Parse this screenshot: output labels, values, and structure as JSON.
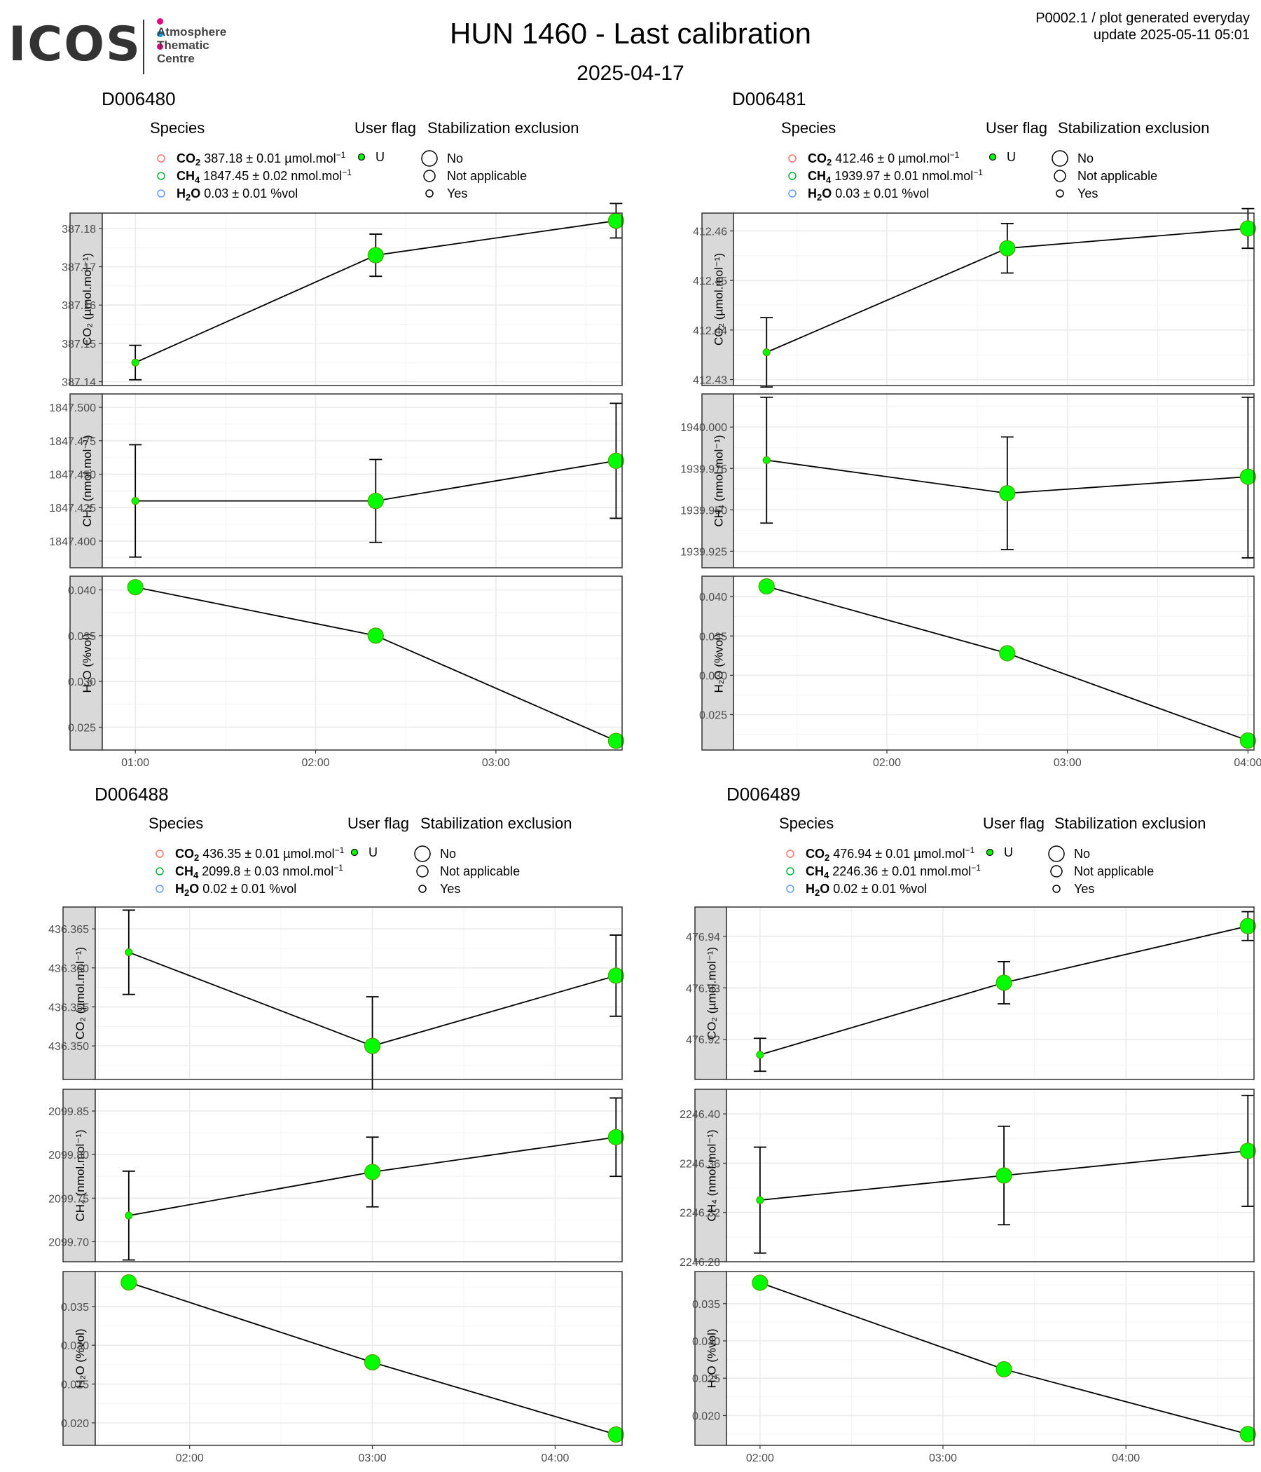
{
  "header": {
    "logo_text": "ICOS",
    "logo_subtitle": "Atmosphere\nThematic\nCentre",
    "logo_dot_colors": [
      "#e6007e",
      "#00a0e3",
      "#e6007e"
    ],
    "title": "HUN 1460 - Last calibration",
    "subtitle": "2025-04-17",
    "top_right_line1": "P0002.1 / plot generated everyday",
    "top_right_line2": "update  2025-05-11 05:01"
  },
  "legend_titles": {
    "species": "Species",
    "user_flag": "User flag",
    "stabilization": "Stabilization exclusion",
    "user_flag_value": "U",
    "stab_values": [
      "No",
      "Not applicable",
      "Yes"
    ]
  },
  "colors": {
    "point_fill": "#00ff00",
    "point_edge": "#52a300",
    "line": "#000000",
    "co2_legend": "#f8766d",
    "ch4_legend": "#00ba38",
    "h2o_legend": "#619cff"
  },
  "chart_data": [
    {
      "type": "line",
      "cylinder": "D006480",
      "legend": [
        {
          "species": "CO",
          "sub": "2",
          "text": " 387.18 ± 0.01 µmol.mol",
          "sup": "−1"
        },
        {
          "species": "CH",
          "sub": "4",
          "text": " 1847.45 ± 0.02 nmol.mol",
          "sup": "−1"
        },
        {
          "species": "H",
          "sub": "2",
          "species2": "O",
          "text": " 0.03 ± 0.01 %vol",
          "sup": ""
        }
      ],
      "x_ticks": [
        {
          "v": 60,
          "label": "01:00"
        },
        {
          "v": 120,
          "label": "02:00"
        },
        {
          "v": 180,
          "label": "03:00"
        }
      ],
      "xlim": [
        49,
        222
      ],
      "panels": [
        {
          "ylabel": "CO₂ (µmol.mol⁻¹)",
          "ylim": [
            387.139,
            387.184
          ],
          "ticks": [
            "387.14",
            "387.15",
            "387.16",
            "387.17",
            "387.18"
          ],
          "tick_vals": [
            387.14,
            387.15,
            387.16,
            387.17,
            387.18
          ],
          "points": [
            {
              "x": 60,
              "y": 387.145,
              "lo": 387.1405,
              "hi": 387.1495,
              "s": "small"
            },
            {
              "x": 140,
              "y": 387.173,
              "lo": 387.1675,
              "hi": 387.1785,
              "s": "large"
            },
            {
              "x": 220,
              "y": 387.182,
              "lo": 387.1775,
              "hi": 387.1865,
              "s": "large"
            }
          ]
        },
        {
          "ylabel": "CH₄ (nmol.mol⁻¹)",
          "ylim": [
            1847.38,
            1847.51
          ],
          "ticks": [
            "1847.400",
            "1847.425",
            "1847.450",
            "1847.475",
            "1847.500"
          ],
          "tick_vals": [
            1847.4,
            1847.425,
            1847.45,
            1847.475,
            1847.5
          ],
          "points": [
            {
              "x": 60,
              "y": 1847.43,
              "lo": 1847.388,
              "hi": 1847.472,
              "s": "small"
            },
            {
              "x": 140,
              "y": 1847.43,
              "lo": 1847.399,
              "hi": 1847.461,
              "s": "large"
            },
            {
              "x": 220,
              "y": 1847.46,
              "lo": 1847.417,
              "hi": 1847.503,
              "s": "large"
            }
          ]
        },
        {
          "ylabel": "H₂O (%vol)",
          "ylim": [
            0.0225,
            0.0415
          ],
          "ticks": [
            "0.025",
            "0.030",
            "0.035",
            "0.040"
          ],
          "tick_vals": [
            0.025,
            0.03,
            0.035,
            0.04
          ],
          "points": [
            {
              "x": 60,
              "y": 0.0403,
              "lo": 0.0399,
              "hi": 0.0407,
              "s": "large"
            },
            {
              "x": 140,
              "y": 0.035,
              "lo": 0.0346,
              "hi": 0.0354,
              "s": "large"
            },
            {
              "x": 220,
              "y": 0.0235,
              "lo": 0.023,
              "hi": 0.024,
              "s": "large"
            }
          ]
        }
      ]
    },
    {
      "type": "line",
      "cylinder": "D006481",
      "legend": [
        {
          "species": "CO",
          "sub": "2",
          "text": " 412.46 ± 0 µmol.mol",
          "sup": "−1"
        },
        {
          "species": "CH",
          "sub": "4",
          "text": " 1939.97 ± 0.01 nmol.mol",
          "sup": "−1"
        },
        {
          "species": "H",
          "sub": "2",
          "species2": "O",
          "text": " 0.03 ± 0.01 %vol",
          "sup": ""
        }
      ],
      "x_ticks": [
        {
          "v": 120,
          "label": "02:00"
        },
        {
          "v": 180,
          "label": "03:00"
        },
        {
          "v": 240,
          "label": "04:00"
        }
      ],
      "xlim": [
        69,
        242
      ],
      "panels": [
        {
          "ylabel": "CO₂ (µmol.mol⁻¹)",
          "ylim": [
            412.4288,
            412.4636
          ],
          "ticks": [
            "412.43",
            "412.44",
            "412.45",
            "412.46"
          ],
          "tick_vals": [
            412.43,
            412.44,
            412.45,
            412.46
          ],
          "points": [
            {
              "x": 80,
              "y": 412.4355,
              "lo": 412.4285,
              "hi": 412.4425,
              "s": "small"
            },
            {
              "x": 160,
              "y": 412.4565,
              "lo": 412.4515,
              "hi": 412.4615,
              "s": "large"
            },
            {
              "x": 240,
              "y": 412.4605,
              "lo": 412.4565,
              "hi": 412.4645,
              "s": "large"
            }
          ]
        },
        {
          "ylabel": "CH₄ (nmol.mol⁻¹)",
          "ylim": [
            1939.915,
            1940.02
          ],
          "ticks": [
            "1939.925",
            "1939.950",
            "1939.975",
            "1940.000"
          ],
          "tick_vals": [
            1939.925,
            1939.95,
            1939.975,
            1940.0
          ],
          "points": [
            {
              "x": 80,
              "y": 1939.98,
              "lo": 1939.942,
              "hi": 1940.018,
              "s": "small"
            },
            {
              "x": 160,
              "y": 1939.96,
              "lo": 1939.926,
              "hi": 1939.994,
              "s": "large"
            },
            {
              "x": 240,
              "y": 1939.97,
              "lo": 1939.921,
              "hi": 1940.018,
              "s": "large"
            }
          ]
        },
        {
          "ylabel": "H₂O (%vol)",
          "ylim": [
            0.0205,
            0.0426
          ],
          "ticks": [
            "0.025",
            "0.030",
            "0.035",
            "0.040"
          ],
          "tick_vals": [
            0.025,
            0.03,
            0.035,
            0.04
          ],
          "points": [
            {
              "x": 80,
              "y": 0.0413,
              "lo": 0.0409,
              "hi": 0.0417,
              "s": "large"
            },
            {
              "x": 160,
              "y": 0.0328,
              "lo": 0.0324,
              "hi": 0.0332,
              "s": "large"
            },
            {
              "x": 240,
              "y": 0.0217,
              "lo": 0.0212,
              "hi": 0.0222,
              "s": "large"
            }
          ]
        }
      ]
    },
    {
      "type": "line",
      "cylinder": "D006488",
      "legend": [
        {
          "species": "CO",
          "sub": "2",
          "text": " 436.35 ± 0.01 µmol.mol",
          "sup": "−1"
        },
        {
          "species": "CH",
          "sub": "4",
          "text": " 2099.8 ± 0.03 nmol.mol",
          "sup": "−1"
        },
        {
          "species": "H",
          "sub": "2",
          "species2": "O",
          "text": " 0.02 ± 0.01 %vol",
          "sup": ""
        }
      ],
      "x_ticks": [
        {
          "v": 120,
          "label": "02:00"
        },
        {
          "v": 180,
          "label": "03:00"
        },
        {
          "v": 240,
          "label": "04:00"
        }
      ],
      "xlim": [
        89,
        262
      ],
      "panels": [
        {
          "ylabel": "CO₂ (µmol.mol⁻¹)",
          "ylim": [
            436.3457,
            436.3678
          ],
          "ticks": [
            "436.350",
            "436.355",
            "436.360",
            "436.365"
          ],
          "tick_vals": [
            436.35,
            436.355,
            436.36,
            436.365
          ],
          "points": [
            {
              "x": 100,
              "y": 436.362,
              "lo": 436.3566,
              "hi": 436.3674,
              "s": "small"
            },
            {
              "x": 180,
              "y": 436.35,
              "lo": 436.3437,
              "hi": 436.3563,
              "s": "large"
            },
            {
              "x": 260,
              "y": 436.359,
              "lo": 436.3538,
              "hi": 436.3642,
              "s": "large"
            }
          ]
        },
        {
          "ylabel": "CH₄ (nmol.mol⁻¹)",
          "ylim": [
            2099.677,
            2099.875
          ],
          "ticks": [
            "2099.70",
            "2099.75",
            "2099.80",
            "2099.85"
          ],
          "tick_vals": [
            2099.7,
            2099.75,
            2099.8,
            2099.85
          ],
          "points": [
            {
              "x": 100,
              "y": 2099.73,
              "lo": 2099.679,
              "hi": 2099.781,
              "s": "small"
            },
            {
              "x": 180,
              "y": 2099.78,
              "lo": 2099.74,
              "hi": 2099.82,
              "s": "large"
            },
            {
              "x": 260,
              "y": 2099.82,
              "lo": 2099.775,
              "hi": 2099.865,
              "s": "large"
            }
          ]
        },
        {
          "ylabel": "H₂O (%vol)",
          "ylim": [
            0.0171,
            0.0395
          ],
          "ticks": [
            "0.020",
            "0.025",
            "0.030",
            "0.035"
          ],
          "tick_vals": [
            0.02,
            0.025,
            0.03,
            0.035
          ],
          "points": [
            {
              "x": 100,
              "y": 0.0381,
              "lo": 0.0377,
              "hi": 0.0385,
              "s": "large"
            },
            {
              "x": 180,
              "y": 0.0278,
              "lo": 0.0272,
              "hi": 0.0284,
              "s": "large"
            },
            {
              "x": 260,
              "y": 0.0185,
              "lo": 0.0181,
              "hi": 0.0189,
              "s": "large"
            }
          ]
        }
      ]
    },
    {
      "type": "line",
      "cylinder": "D006489",
      "legend": [
        {
          "species": "CO",
          "sub": "2",
          "text": " 476.94 ± 0.01 µmol.mol",
          "sup": "−1"
        },
        {
          "species": "CH",
          "sub": "4",
          "text": " 2246.36 ± 0.01 nmol.mol",
          "sup": "−1"
        },
        {
          "species": "H",
          "sub": "2",
          "species2": "O",
          "text": " 0.02 ± 0.01 %vol",
          "sup": ""
        }
      ],
      "x_ticks": [
        {
          "v": 120,
          "label": "02:00"
        },
        {
          "v": 180,
          "label": "03:00"
        },
        {
          "v": 240,
          "label": "04:00"
        }
      ],
      "xlim": [
        109,
        282
      ],
      "panels": [
        {
          "ylabel": "CO₂ (µmol.mol⁻¹)",
          "ylim": [
            476.9122,
            476.9457
          ],
          "ticks": [
            "476.92",
            "476.93",
            "476.94"
          ],
          "tick_vals": [
            476.92,
            476.93,
            476.94
          ],
          "points": [
            {
              "x": 120,
              "y": 476.917,
              "lo": 476.9138,
              "hi": 476.9202,
              "s": "small"
            },
            {
              "x": 200,
              "y": 476.931,
              "lo": 476.9269,
              "hi": 476.9351,
              "s": "large"
            },
            {
              "x": 280,
              "y": 476.942,
              "lo": 476.9392,
              "hi": 476.9448,
              "s": "large"
            }
          ]
        },
        {
          "ylabel": "CH₄ (nmol.mol⁻¹)",
          "ylim": [
            2246.28,
            2246.42
          ],
          "ticks": [
            "2246.28",
            "2246.32",
            "2246.36",
            "2246.40"
          ],
          "tick_vals": [
            2246.28,
            2246.32,
            2246.36,
            2246.4
          ],
          "points": [
            {
              "x": 120,
              "y": 2246.33,
              "lo": 2246.287,
              "hi": 2246.373,
              "s": "small"
            },
            {
              "x": 200,
              "y": 2246.35,
              "lo": 2246.31,
              "hi": 2246.39,
              "s": "large"
            },
            {
              "x": 280,
              "y": 2246.37,
              "lo": 2246.325,
              "hi": 2246.415,
              "s": "large"
            }
          ]
        },
        {
          "ylabel": "H₂O (%vol)",
          "ylim": [
            0.016,
            0.0393
          ],
          "ticks": [
            "0.020",
            "0.025",
            "0.030",
            "0.035"
          ],
          "tick_vals": [
            0.02,
            0.025,
            0.03,
            0.035
          ],
          "points": [
            {
              "x": 120,
              "y": 0.0378,
              "lo": 0.0374,
              "hi": 0.0382,
              "s": "large"
            },
            {
              "x": 200,
              "y": 0.0262,
              "lo": 0.0256,
              "hi": 0.0268,
              "s": "large"
            },
            {
              "x": 280,
              "y": 0.0175,
              "lo": 0.0171,
              "hi": 0.0179,
              "s": "large"
            }
          ]
        }
      ]
    }
  ]
}
